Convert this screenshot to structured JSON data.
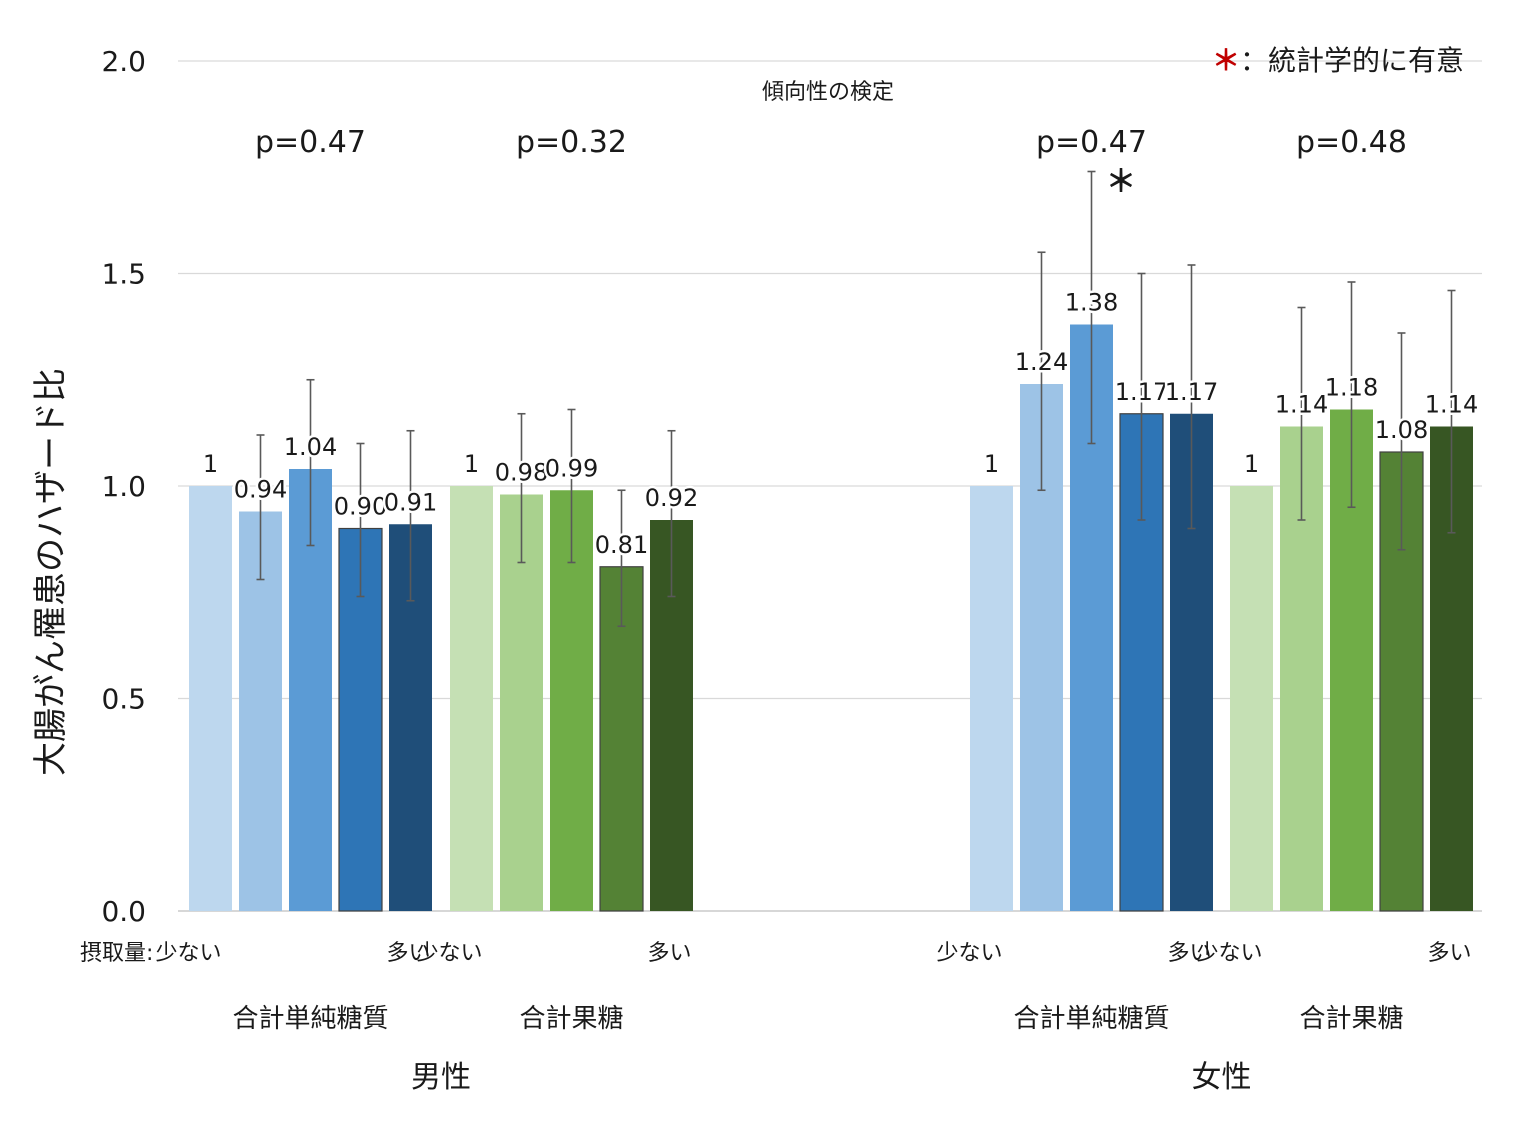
{
  "chart_data": {
    "type": "bar",
    "ylabel": "大腸がん罹患のハザード比",
    "ylim": [
      0.0,
      2.0
    ],
    "yticks": [
      "0.0",
      "0.5",
      "1.0",
      "1.5",
      "2.0"
    ],
    "grid": true,
    "legend_note": {
      "star": "＊",
      "text": "：統計学的に有意",
      "position": "top-right"
    },
    "trend_test_label": "傾向性の検定",
    "intake_label": "摂取量:",
    "low_label": "少ない",
    "high_label": "多い",
    "sexes": [
      {
        "label": "男性",
        "groups": [
          {
            "label": "合計単純糖質",
            "p_value": "p=0.47",
            "values": [
              1.0,
              0.94,
              1.04,
              0.9,
              0.91
            ],
            "value_labels": [
              "1",
              "0.94",
              "1.04",
              "0.90",
              "0.91"
            ],
            "ci_low": [
              null,
              0.78,
              0.86,
              0.74,
              0.73
            ],
            "ci_high": [
              null,
              1.12,
              1.25,
              1.1,
              1.13
            ],
            "significant": [
              false,
              false,
              false,
              false,
              false
            ]
          },
          {
            "label": "合計果糖",
            "p_value": "p=0.32",
            "values": [
              1.0,
              0.98,
              0.99,
              0.81,
              0.92
            ],
            "value_labels": [
              "1",
              "0.98",
              "0.99",
              "0.81",
              "0.92"
            ],
            "ci_low": [
              null,
              0.82,
              0.82,
              0.67,
              0.74
            ],
            "ci_high": [
              null,
              1.17,
              1.18,
              0.99,
              1.13
            ],
            "significant": [
              false,
              false,
              false,
              false,
              false
            ]
          }
        ]
      },
      {
        "label": "女性",
        "groups": [
          {
            "label": "合計単純糖質",
            "p_value": "p=0.47",
            "values": [
              1.0,
              1.24,
              1.38,
              1.17,
              1.17
            ],
            "value_labels": [
              "1",
              "1.24",
              "1.38",
              "1.17",
              "1.17"
            ],
            "ci_low": [
              null,
              0.99,
              1.1,
              0.92,
              0.9
            ],
            "ci_high": [
              null,
              1.55,
              1.74,
              1.5,
              1.52
            ],
            "significant": [
              false,
              false,
              true,
              false,
              false
            ]
          },
          {
            "label": "合計果糖",
            "p_value": "p=0.48",
            "values": [
              1.0,
              1.14,
              1.18,
              1.08,
              1.14
            ],
            "value_labels": [
              "1",
              "1.14",
              "1.18",
              "1.08",
              "1.14"
            ],
            "ci_low": [
              null,
              0.92,
              0.95,
              0.85,
              0.89
            ],
            "ci_high": [
              null,
              1.42,
              1.48,
              1.36,
              1.46
            ],
            "significant": [
              false,
              false,
              false,
              false,
              false
            ]
          }
        ]
      }
    ],
    "colors": {
      "blue": [
        "#bdd7ee",
        "#9dc3e6",
        "#5b9bd5",
        "#2e75b6",
        "#1f4e79"
      ],
      "green": [
        "#c5e0b4",
        "#a9d18e",
        "#70ad47",
        "#548235",
        "#375623"
      ],
      "gridline": "#d9d9d9",
      "errorbar": "#595959",
      "star": "#c00000"
    }
  }
}
